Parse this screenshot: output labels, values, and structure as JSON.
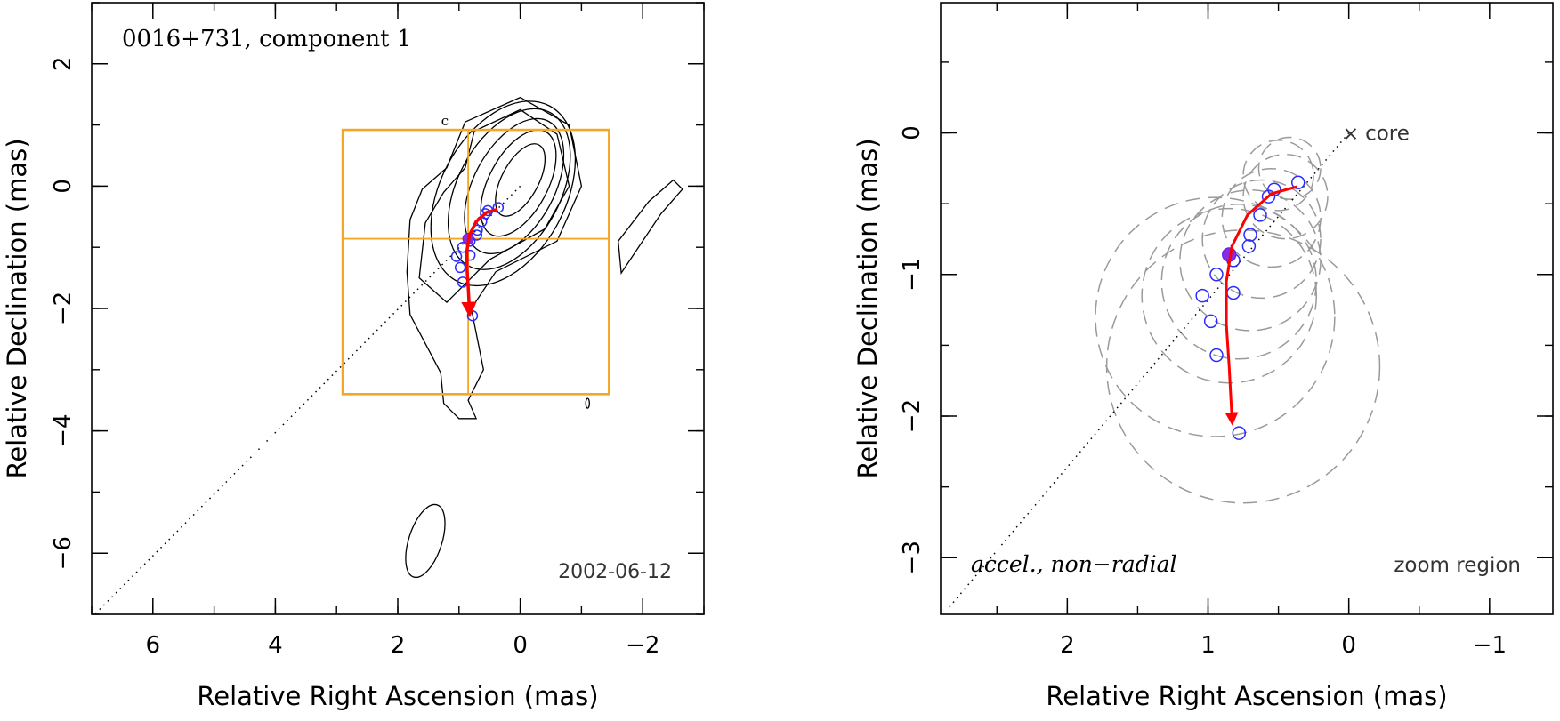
{
  "chart_data": [
    {
      "type": "scatter",
      "panel": "left",
      "title": "0016+731, component 1",
      "date": "2002-06-12",
      "xlabel": "Relative Right Ascension (mas)",
      "ylabel": "Relative Declination (mas)",
      "xlim": [
        7,
        -3
      ],
      "ylim": [
        -7,
        3
      ],
      "xticks": [
        6,
        4,
        2,
        0,
        -2
      ],
      "yticks": [
        2,
        0,
        -2,
        -4,
        -6
      ],
      "grid": false,
      "colors": {
        "contour": "#000000",
        "box": "#f5a623",
        "points": "#2b2bff",
        "track": "#ff0000"
      },
      "core_label": "c",
      "zoom_box": {
        "x": [
          2.9,
          -1.45
        ],
        "y": [
          -3.4,
          0.92
        ],
        "cross_x": 0.85,
        "cross_y": -0.86
      },
      "positions": [
        {
          "x": 0.36,
          "y": -0.35
        },
        {
          "x": 0.53,
          "y": -0.4
        },
        {
          "x": 0.57,
          "y": -0.45
        },
        {
          "x": 0.63,
          "y": -0.58
        },
        {
          "x": 0.7,
          "y": -0.72
        },
        {
          "x": 0.71,
          "y": -0.8
        },
        {
          "x": 0.82,
          "y": -0.9
        },
        {
          "x": 0.82,
          "y": -1.13
        },
        {
          "x": 0.94,
          "y": -1.0
        },
        {
          "x": 1.04,
          "y": -1.15
        },
        {
          "x": 0.98,
          "y": -1.33
        },
        {
          "x": 0.94,
          "y": -1.57
        },
        {
          "x": 0.78,
          "y": -2.12
        }
      ],
      "current_position": {
        "x": 0.85,
        "y": -0.86
      },
      "track": [
        {
          "x": 0.37,
          "y": -0.38
        },
        {
          "x": 0.55,
          "y": -0.43
        },
        {
          "x": 0.72,
          "y": -0.58
        },
        {
          "x": 0.83,
          "y": -0.8
        },
        {
          "x": 0.87,
          "y": -1.05
        },
        {
          "x": 0.87,
          "y": -1.35
        },
        {
          "x": 0.85,
          "y": -1.65
        },
        {
          "x": 0.83,
          "y": -2.02
        }
      ]
    },
    {
      "type": "scatter",
      "panel": "right",
      "xlabel": "Relative Right Ascension (mas)",
      "ylabel": "Relative Declination (mas)",
      "xlim": [
        2.9,
        -1.45
      ],
      "ylim": [
        -3.4,
        0.92
      ],
      "xticks": [
        2,
        1,
        0,
        -1
      ],
      "yticks": [
        0,
        -1,
        -2,
        -3
      ],
      "grid": false,
      "core_label": "core",
      "annotation": "accel., non−radial",
      "region_label": "zoom region",
      "positions": [
        {
          "x": 0.36,
          "y": -0.35
        },
        {
          "x": 0.53,
          "y": -0.4
        },
        {
          "x": 0.57,
          "y": -0.45
        },
        {
          "x": 0.63,
          "y": -0.58
        },
        {
          "x": 0.7,
          "y": -0.72
        },
        {
          "x": 0.71,
          "y": -0.8
        },
        {
          "x": 0.82,
          "y": -0.9
        },
        {
          "x": 0.82,
          "y": -1.13
        },
        {
          "x": 0.94,
          "y": -1.0
        },
        {
          "x": 1.04,
          "y": -1.15
        },
        {
          "x": 0.98,
          "y": -1.33
        },
        {
          "x": 0.94,
          "y": -1.57
        },
        {
          "x": 0.78,
          "y": -2.12
        }
      ],
      "current_position": {
        "x": 0.85,
        "y": -0.86
      },
      "track": [
        {
          "x": 0.37,
          "y": -0.38
        },
        {
          "x": 0.55,
          "y": -0.43
        },
        {
          "x": 0.72,
          "y": -0.58
        },
        {
          "x": 0.83,
          "y": -0.8
        },
        {
          "x": 0.87,
          "y": -1.05
        },
        {
          "x": 0.87,
          "y": -1.35
        },
        {
          "x": 0.85,
          "y": -1.65
        },
        {
          "x": 0.83,
          "y": -2.02
        }
      ],
      "component_sizes_mas": [
        {
          "x": 0.42,
          "y": -0.25,
          "r": 0.22
        },
        {
          "x": 0.5,
          "y": -0.3,
          "r": 0.25
        },
        {
          "x": 0.45,
          "y": -0.45,
          "r": 0.3
        },
        {
          "x": 0.55,
          "y": -0.6,
          "r": 0.35
        },
        {
          "x": 0.62,
          "y": -0.75,
          "r": 0.42
        },
        {
          "x": 0.7,
          "y": -0.9,
          "r": 0.5
        },
        {
          "x": 0.78,
          "y": -1.05,
          "r": 0.55
        },
        {
          "x": 0.85,
          "y": -1.15,
          "r": 0.62
        },
        {
          "x": 0.95,
          "y": -1.3,
          "r": 0.85
        },
        {
          "x": 0.75,
          "y": -1.65,
          "r": 0.97
        }
      ]
    }
  ]
}
